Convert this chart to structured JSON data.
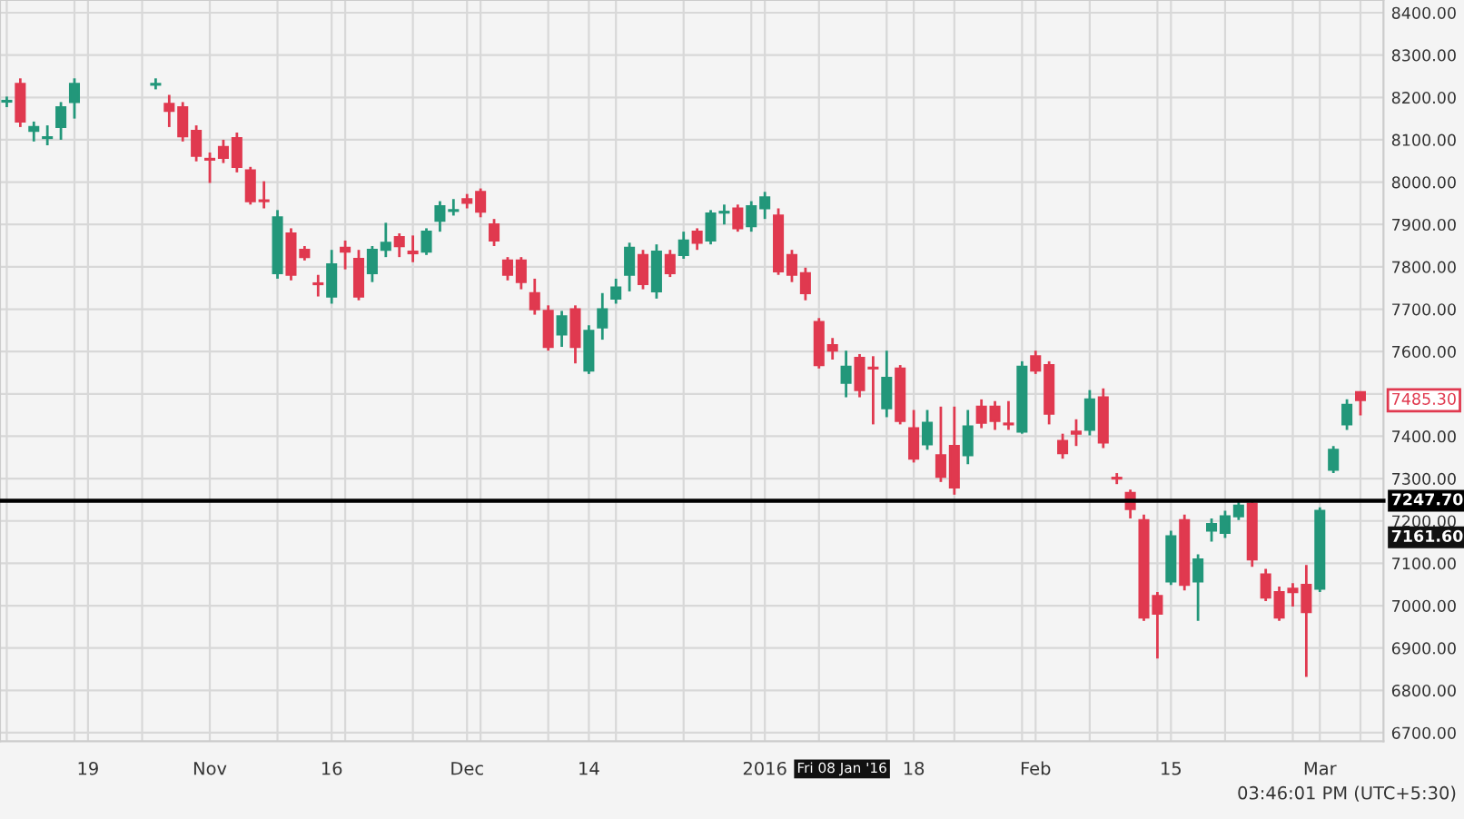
{
  "chart_data": {
    "type": "candlestick",
    "categories": [
      null,
      null,
      null,
      null,
      null,
      null,
      "19",
      null,
      null,
      null,
      null,
      null,
      null,
      null,
      null,
      "Nov",
      null,
      null,
      null,
      null,
      null,
      null,
      null,
      null,
      "16",
      null,
      null,
      null,
      null,
      null,
      null,
      null,
      null,
      null,
      "Dec",
      null,
      null,
      null,
      null,
      null,
      null,
      null,
      null,
      "14",
      null,
      null,
      null,
      null,
      null,
      null,
      null,
      null,
      null,
      null,
      null,
      null,
      "2016",
      null,
      null,
      null,
      null,
      null,
      null,
      null,
      null,
      null,
      null,
      "18",
      null,
      null,
      null,
      null,
      null,
      null,
      null,
      null,
      "Feb",
      null,
      null,
      null,
      null,
      null,
      null,
      null,
      null,
      null,
      "15",
      null,
      null,
      null,
      null,
      null,
      null,
      null,
      null,
      null,
      null,
      "Mar",
      null,
      null,
      null
    ],
    "ohlc": [
      [
        8190,
        8202,
        8177,
        8192
      ],
      [
        8232,
        8245,
        8130,
        8143
      ],
      [
        8121,
        8143,
        8096,
        8130
      ],
      [
        8104,
        8134,
        8087,
        8106
      ],
      [
        8130,
        8189,
        8100,
        8177
      ],
      [
        8189,
        8245,
        8150,
        8232
      ],
      null,
      null,
      null,
      null,
      null,
      [
        8230,
        8245,
        8219,
        8232
      ],
      [
        8185,
        8206,
        8130,
        8168
      ],
      [
        8177,
        8189,
        8096,
        8108
      ],
      [
        8121,
        8134,
        8049,
        8062
      ],
      [
        8055,
        8070,
        7998,
        8053
      ],
      [
        8083,
        8100,
        8045,
        8057
      ],
      [
        8104,
        8117,
        8023,
        8036
      ],
      [
        8028,
        8036,
        7947,
        7955
      ],
      [
        7957,
        8002,
        7938,
        7955
      ],
      [
        7785,
        7934,
        7772,
        7917
      ],
      [
        7879,
        7891,
        7768,
        7781
      ],
      [
        7840,
        7849,
        7815,
        7823
      ],
      [
        7761,
        7781,
        7730,
        7759
      ],
      [
        7730,
        7840,
        7713,
        7806
      ],
      [
        7845,
        7862,
        7794,
        7836
      ],
      [
        7819,
        7840,
        7721,
        7730
      ],
      [
        7785,
        7849,
        7764,
        7840
      ],
      [
        7840,
        7904,
        7823,
        7857
      ],
      [
        7870,
        7879,
        7823,
        7849
      ],
      [
        7836,
        7874,
        7811,
        7832
      ],
      [
        7836,
        7891,
        7828,
        7883
      ],
      [
        7909,
        7955,
        7883,
        7943
      ],
      [
        7932,
        7960,
        7921,
        7934
      ],
      [
        7960,
        7972,
        7938,
        7951
      ],
      [
        7977,
        7985,
        7917,
        7930
      ],
      [
        7900,
        7913,
        7849,
        7862
      ],
      [
        7815,
        7823,
        7768,
        7781
      ],
      [
        7815,
        7823,
        7747,
        7764
      ],
      [
        7738,
        7772,
        7687,
        7700
      ],
      [
        7696,
        7709,
        7602,
        7611
      ],
      [
        7640,
        7696,
        7611,
        7683
      ],
      [
        7700,
        7709,
        7572,
        7611
      ],
      [
        7555,
        7662,
        7547,
        7649
      ],
      [
        7657,
        7738,
        7628,
        7700
      ],
      [
        7725,
        7772,
        7713,
        7751
      ],
      [
        7781,
        7857,
        7742,
        7845
      ],
      [
        7828,
        7840,
        7747,
        7759
      ],
      [
        7742,
        7853,
        7725,
        7836
      ],
      [
        7828,
        7840,
        7776,
        7785
      ],
      [
        7828,
        7883,
        7819,
        7862
      ],
      [
        7883,
        7891,
        7840,
        7857
      ],
      [
        7862,
        7934,
        7853,
        7926
      ],
      [
        7928,
        7947,
        7900,
        7930
      ],
      [
        7938,
        7947,
        7883,
        7891
      ],
      [
        7896,
        7955,
        7883,
        7943
      ],
      [
        7938,
        7977,
        7913,
        7964
      ],
      [
        7921,
        7938,
        7781,
        7789
      ],
      [
        7828,
        7840,
        7764,
        7781
      ],
      [
        7785,
        7798,
        7721,
        7738
      ],
      [
        7670,
        7679,
        7560,
        7568
      ],
      [
        7615,
        7632,
        7581,
        7602
      ],
      [
        7526,
        7602,
        7492,
        7564
      ],
      [
        7585,
        7594,
        7492,
        7509
      ],
      [
        7562,
        7589,
        7428,
        7560
      ],
      [
        7466,
        7602,
        7445,
        7538
      ],
      [
        7560,
        7568,
        7428,
        7436
      ],
      [
        7419,
        7462,
        7338,
        7347
      ],
      [
        7381,
        7462,
        7368,
        7432
      ],
      [
        7355,
        7470,
        7292,
        7304
      ],
      [
        7377,
        7470,
        7262,
        7279
      ],
      [
        7355,
        7462,
        7334,
        7423
      ],
      [
        7470,
        7487,
        7419,
        7432
      ],
      [
        7470,
        7483,
        7415,
        7436
      ],
      [
        7430,
        7483,
        7415,
        7428
      ],
      [
        7411,
        7577,
        7406,
        7564
      ],
      [
        7589,
        7602,
        7547,
        7555
      ],
      [
        7568,
        7577,
        7428,
        7453
      ],
      [
        7389,
        7406,
        7347,
        7360
      ],
      [
        7411,
        7440,
        7377,
        7406
      ],
      [
        7415,
        7509,
        7402,
        7487
      ],
      [
        7492,
        7513,
        7372,
        7385
      ],
      [
        7302,
        7313,
        7287,
        7300
      ],
      [
        7266,
        7274,
        7206,
        7228
      ],
      [
        7202,
        7215,
        6964,
        6972
      ],
      [
        7023,
        7032,
        6875,
        6981
      ],
      [
        7057,
        7177,
        7049,
        7164
      ],
      [
        7202,
        7215,
        7036,
        7049
      ],
      [
        7057,
        7121,
        6964,
        7109
      ],
      [
        7177,
        7206,
        7151,
        7193
      ],
      [
        7172,
        7224,
        7160,
        7211
      ],
      [
        7211,
        7245,
        7202,
        7236
      ],
      [
        7241,
        7249,
        7092,
        7109
      ],
      [
        7074,
        7087,
        7011,
        7019
      ],
      [
        7032,
        7045,
        6964,
        6972
      ],
      [
        7040,
        7053,
        6998,
        7032
      ],
      [
        7049,
        7096,
        6832,
        6985
      ],
      [
        7040,
        7232,
        7032,
        7224
      ],
      [
        7321,
        7377,
        7313,
        7368
      ],
      [
        7428,
        7487,
        7415,
        7474
      ],
      [
        7504,
        7504,
        7449,
        7485.3
      ]
    ],
    "colors": [
      "#22977a",
      "#e0394f",
      "#22977a",
      "#22977a",
      "#22977a",
      "#22977a",
      null,
      null,
      null,
      null,
      null,
      "#22977a",
      "#e0394f",
      "#e0394f",
      "#e0394f",
      "#e0394f",
      "#e0394f",
      "#e0394f",
      "#e0394f",
      "#e0394f",
      "#22977a",
      "#e0394f",
      "#e0394f",
      "#e0394f",
      "#22977a",
      "#e0394f",
      "#e0394f",
      "#22977a",
      "#22977a",
      "#e0394f",
      "#e0394f",
      "#22977a",
      "#22977a",
      "#22977a",
      "#e0394f",
      "#e0394f",
      "#e0394f",
      "#e0394f",
      "#e0394f",
      "#e0394f",
      "#e0394f",
      "#22977a",
      "#e0394f",
      "#22977a",
      "#22977a",
      "#22977a",
      "#22977a",
      "#e0394f",
      "#22977a",
      "#e0394f",
      "#22977a",
      "#e0394f",
      "#22977a",
      "#22977a",
      "#e0394f",
      "#22977a",
      "#22977a",
      "#e0394f",
      "#e0394f",
      "#e0394f",
      "#e0394f",
      "#e0394f",
      "#22977a",
      "#e0394f",
      "#e0394f",
      "#22977a",
      "#e0394f",
      "#e0394f",
      "#22977a",
      "#e0394f",
      "#e0394f",
      "#22977a",
      "#e0394f",
      "#e0394f",
      "#e0394f",
      "#22977a",
      "#e0394f",
      "#e0394f",
      "#e0394f",
      "#e0394f",
      "#22977a",
      "#e0394f",
      "#e0394f",
      "#e0394f",
      "#e0394f",
      "#e0394f",
      "#22977a",
      "#e0394f",
      "#22977a",
      "#22977a",
      "#22977a",
      "#22977a",
      "#e0394f",
      "#e0394f",
      "#e0394f",
      "#e0394f",
      "#e0394f",
      "#22977a",
      "#22977a",
      "#22977a",
      "#e0394f"
    ],
    "ylim": [
      6680,
      8430
    ],
    "yticks": [
      {
        "value": 6700,
        "label": "6700.00"
      },
      {
        "value": 6800,
        "label": "6800.00"
      },
      {
        "value": 6900,
        "label": "6900.00"
      },
      {
        "value": 7000,
        "label": "7000.00"
      },
      {
        "value": 7100,
        "label": "7100.00"
      },
      {
        "value": 7200,
        "label": "7200.00"
      },
      {
        "value": 7300,
        "label": "7300.00"
      },
      {
        "value": 7400,
        "label": "7400.00"
      },
      {
        "value": 7500,
        "label": null
      },
      {
        "value": 7600,
        "label": "7600.00"
      },
      {
        "value": 7700,
        "label": "7700.00"
      },
      {
        "value": 7800,
        "label": "7800.00"
      },
      {
        "value": 7900,
        "label": "7900.00"
      },
      {
        "value": 8000,
        "label": "8000.00"
      },
      {
        "value": 8100,
        "label": "8100.00"
      },
      {
        "value": 8200,
        "label": "8200.00"
      },
      {
        "value": 8300,
        "label": "8300.00"
      },
      {
        "value": 8400,
        "label": "8400.00"
      }
    ],
    "grid": true,
    "ref_lines": [
      {
        "axis": "y",
        "value": 7247.7,
        "label": "7247.70",
        "color": "#000000"
      }
    ],
    "annotations": [
      "Fri 08 Jan '16",
      "03:46:01 PM (UTC+5:30)",
      "7485.30",
      "7161.60"
    ]
  }
}
